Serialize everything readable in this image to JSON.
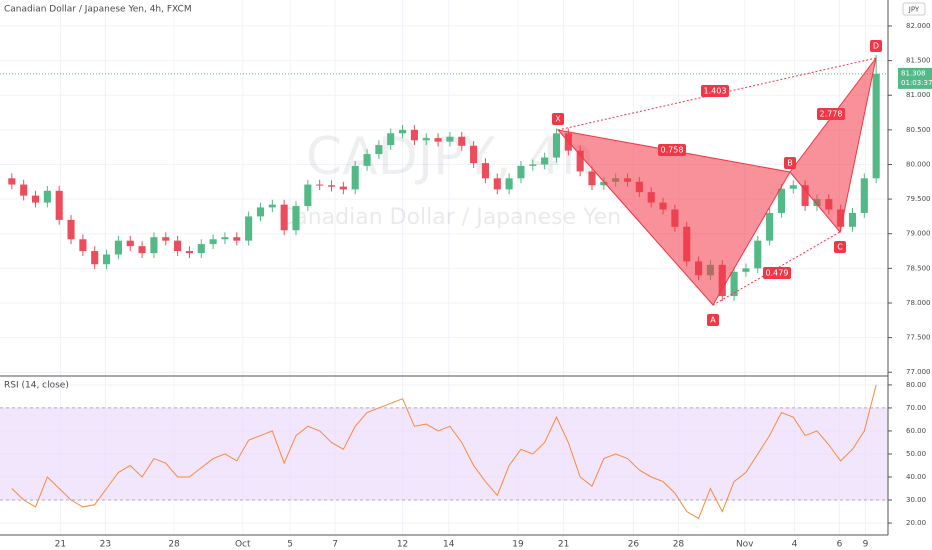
{
  "chart_data": [
    {
      "type": "candlestick",
      "title": "Canadian Dollar / Japanese Yen, 4h, FXCM",
      "watermark": "CADJPY, 4h",
      "watermark_subtitle": "Canadian Dollar / Japanese Yen",
      "currency": "JPY",
      "last_price": 81.308,
      "countdown": "01:03:37",
      "up_color": "#53b987",
      "down_color": "#eb4d5c",
      "xlim": [
        -1,
        74
      ],
      "xticks": [
        {
          "value": 4.1,
          "label": "21"
        },
        {
          "value": 7.9,
          "label": "23"
        },
        {
          "value": 13.7,
          "label": "28"
        },
        {
          "value": 19.5,
          "label": "Oct"
        },
        {
          "value": 23.5,
          "label": "5"
        },
        {
          "value": 27.3,
          "label": "7"
        },
        {
          "value": 33.0,
          "label": "12"
        },
        {
          "value": 36.9,
          "label": "14"
        },
        {
          "value": 42.75,
          "label": "19"
        },
        {
          "value": 46.6,
          "label": "21"
        },
        {
          "value": 52.5,
          "label": "26"
        },
        {
          "value": 56.3,
          "label": "28"
        },
        {
          "value": 61.9,
          "label": "Nov"
        },
        {
          "value": 66.1,
          "label": "4"
        },
        {
          "value": 69.9,
          "label": "6"
        },
        {
          "value": 72.1,
          "label": "9"
        }
      ],
      "ylim": [
        76.96,
        82.375
      ],
      "yticks": [
        {
          "value": 77,
          "label": "77.000"
        },
        {
          "value": 77.5,
          "label": "77.500"
        },
        {
          "value": 78,
          "label": "78.000"
        },
        {
          "value": 78.5,
          "label": "78.500"
        },
        {
          "value": 79,
          "label": "79.000"
        },
        {
          "value": 79.5,
          "label": "79.500"
        },
        {
          "value": 80,
          "label": "80.000"
        },
        {
          "value": 80.5,
          "label": "80.500"
        },
        {
          "value": 81,
          "label": "81.000"
        },
        {
          "value": 81.5,
          "label": "81.500"
        },
        {
          "value": 82,
          "label": "82.000"
        }
      ],
      "open": [
        79.8,
        79.71,
        79.55,
        79.45,
        79.62,
        79.2,
        78.92,
        78.75,
        78.56,
        78.7,
        78.9,
        78.82,
        78.72,
        78.95,
        78.9,
        78.75,
        78.72,
        78.85,
        78.92,
        78.95,
        78.9,
        79.25,
        79.38,
        79.42,
        79.05,
        79.4,
        79.71,
        79.7,
        79.68,
        79.64,
        79.98,
        80.15,
        80.28,
        80.45,
        80.5,
        80.35,
        80.38,
        80.33,
        80.4,
        80.27,
        80.02,
        79.8,
        79.64,
        79.8,
        79.98,
        80.0,
        80.1,
        80.45,
        80.2,
        79.9,
        79.7,
        79.75,
        79.8,
        79.75,
        79.6,
        79.45,
        79.35,
        79.1,
        78.6,
        78.4,
        78.55,
        78.1,
        78.45,
        78.5,
        78.9,
        79.3,
        79.65,
        79.7,
        79.4,
        79.5,
        79.35,
        79.1,
        79.3,
        79.8
      ],
      "high": [
        79.87,
        79.78,
        79.62,
        79.69,
        79.69,
        79.27,
        78.99,
        78.82,
        78.77,
        78.97,
        78.97,
        78.89,
        79.02,
        79.02,
        78.97,
        78.82,
        78.92,
        78.99,
        79.02,
        79.02,
        79.32,
        79.45,
        79.49,
        79.49,
        79.47,
        79.78,
        79.78,
        79.77,
        79.75,
        80.05,
        80.22,
        80.35,
        80.52,
        80.57,
        80.57,
        80.45,
        80.45,
        80.47,
        80.47,
        80.34,
        80.09,
        79.87,
        79.87,
        80.05,
        80.07,
        80.17,
        80.52,
        80.52,
        80.27,
        79.97,
        79.82,
        79.87,
        79.87,
        79.82,
        79.67,
        79.52,
        79.42,
        79.17,
        78.67,
        78.62,
        78.62,
        78.52,
        78.57,
        78.97,
        79.37,
        79.72,
        79.77,
        79.77,
        79.57,
        79.57,
        79.42,
        79.37,
        79.87,
        81.58
      ],
      "low": [
        79.64,
        79.48,
        79.38,
        79.38,
        79.13,
        78.85,
        78.68,
        78.49,
        78.49,
        78.63,
        78.75,
        78.65,
        78.65,
        78.83,
        78.68,
        78.65,
        78.65,
        78.78,
        78.85,
        78.83,
        78.83,
        79.18,
        79.31,
        78.98,
        78.98,
        79.33,
        79.63,
        79.61,
        79.57,
        79.57,
        79.91,
        80.08,
        80.21,
        80.38,
        80.28,
        80.28,
        80.26,
        80.26,
        80.2,
        79.95,
        79.73,
        79.57,
        79.57,
        79.73,
        79.91,
        79.93,
        80.03,
        80.13,
        79.83,
        79.63,
        79.63,
        79.68,
        79.68,
        79.53,
        79.38,
        79.28,
        79.03,
        78.53,
        78.33,
        78.33,
        78.03,
        78.03,
        78.38,
        78.43,
        78.83,
        79.23,
        79.58,
        79.33,
        79.33,
        79.28,
        79.03,
        79.03,
        79.23,
        79.73
      ],
      "close": [
        79.71,
        79.55,
        79.45,
        79.62,
        79.2,
        78.92,
        78.75,
        78.56,
        78.7,
        78.9,
        78.82,
        78.72,
        78.95,
        78.9,
        78.75,
        78.72,
        78.85,
        78.92,
        78.95,
        78.9,
        79.25,
        79.38,
        79.42,
        79.05,
        79.4,
        79.71,
        79.7,
        79.68,
        79.64,
        79.98,
        80.15,
        80.28,
        80.45,
        80.5,
        80.35,
        80.38,
        80.33,
        80.4,
        80.27,
        80.02,
        79.8,
        79.64,
        79.8,
        79.98,
        80.0,
        80.1,
        80.45,
        80.2,
        79.9,
        79.7,
        79.75,
        79.8,
        79.75,
        79.6,
        79.45,
        79.35,
        79.1,
        78.6,
        78.4,
        78.55,
        78.1,
        78.45,
        78.5,
        78.9,
        79.3,
        79.65,
        79.7,
        79.4,
        79.5,
        79.35,
        79.1,
        79.3,
        79.8,
        81.31
      ],
      "pattern_points": [
        "X",
        "A",
        "B",
        "C",
        "D"
      ],
      "pattern_ratios": [
        "0.758",
        "0.479",
        "1.403",
        "2.778"
      ]
    },
    {
      "type": "line",
      "title": "RSI (14, close)",
      "color": "#f68a3c",
      "band": [
        30,
        70
      ],
      "band_color": "#ead6fb",
      "ylim": [
        14.8,
        83
      ],
      "yticks": [
        {
          "value": 20,
          "label": "20.00"
        },
        {
          "value": 30,
          "label": "30.00"
        },
        {
          "value": 40,
          "label": "40.00"
        },
        {
          "value": 50,
          "label": "50.00"
        },
        {
          "value": 60,
          "label": "60.00"
        },
        {
          "value": 70,
          "label": "70.00"
        },
        {
          "value": 80,
          "label": "80.00"
        }
      ],
      "values": [
        35,
        30,
        27,
        40,
        35,
        30,
        27,
        28,
        35,
        42,
        45,
        40,
        48,
        46,
        40,
        40,
        44,
        48,
        50,
        47,
        56,
        58,
        60,
        46,
        58,
        62,
        60,
        55,
        52,
        62,
        68,
        70,
        72,
        74,
        62,
        63,
        60,
        62,
        55,
        45,
        38,
        32,
        45,
        52,
        50,
        55,
        66,
        55,
        40,
        36,
        48,
        50,
        48,
        43,
        40,
        38,
        33,
        25,
        22,
        35,
        25,
        38,
        42,
        50,
        58,
        68,
        66,
        58,
        60,
        54,
        47,
        52,
        60,
        80
      ]
    }
  ]
}
